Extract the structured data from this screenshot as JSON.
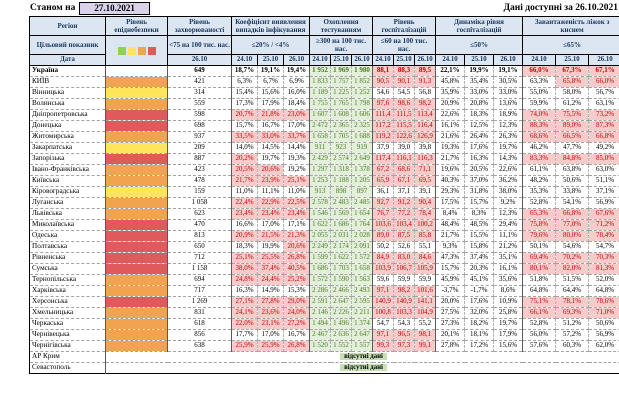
{
  "meta": {
    "as_of_label": "Станом на",
    "as_of_date": "27.10.2021",
    "available_label": "Дані доступні за  26.10.2021"
  },
  "header": {
    "region": "Регіон",
    "target_label": "Цільовий показник",
    "date_label": "Дата",
    "groups": [
      {
        "title": "Рівень епіднебезпеки",
        "target": "",
        "dates": []
      },
      {
        "title": "Рівень захворюваності",
        "target": "<75 на 100 тис. нас.",
        "dates": [
          "26.10"
        ]
      },
      {
        "title": "Коефіцієнт виявлення випадків інфікування",
        "target": "≤20% / <4%",
        "dates": [
          "24.10",
          "25.10",
          "26.10"
        ]
      },
      {
        "title": "Охоплення тестуванням",
        "target": "≥300 на 100 тис. нас.",
        "dates": [
          "24.10",
          "25.10",
          "26.10"
        ]
      },
      {
        "title": "Рівень госпіталізацій",
        "target": "≤60 на 100 тис. нас.",
        "dates": [
          "24.10",
          "25.10",
          "26.10"
        ]
      },
      {
        "title": "Динаміка рівня госпіталізацій",
        "target": "≤50%",
        "dates": [
          "24.10",
          "25.10",
          "26.10"
        ]
      },
      {
        "title": "Завантаженість ліжок з киснем",
        "target": "≤65%",
        "dates": [
          "24.10",
          "25.10",
          "26.10"
        ]
      }
    ]
  },
  "legend_colors": [
    "#92D050",
    "#FFE45C",
    "#F2A34F",
    "#DF5A5A"
  ],
  "thresholds": {
    "detection": 20,
    "hospitalization": 60,
    "dynamics": 50,
    "beds": 65
  },
  "status_colors": {
    "alert_bg": "#F8CBCB",
    "alert_text": "#C00000",
    "good_bg": "#E2EFD9",
    "good_text": "#4E7A27"
  },
  "no_data_text": "відсутні дані",
  "rows": [
    {
      "region": "Україна",
      "level": "none",
      "bold": true,
      "incidence": "649",
      "detection": [
        "18,7%",
        "19,1%",
        "19,4%"
      ],
      "testing": [
        "1 952",
        "1 969",
        "1 980"
      ],
      "hospitalization": [
        "88,1",
        "88,3",
        "89,5"
      ],
      "dynamics": [
        "22,1%",
        "19,9%",
        "19,1%"
      ],
      "beds": [
        "66,0%",
        "67,3%",
        "67,1%"
      ]
    },
    {
      "region": "КИЇВ",
      "level": "orange",
      "incidence": "421",
      "detection": [
        "6,3%",
        "6,7%",
        "6,9%"
      ],
      "testing": [
        "1 833",
        "1 757",
        "1 852"
      ],
      "hospitalization": [
        "90,5",
        "90,1",
        "91,3"
      ],
      "dynamics": [
        "45,8%",
        "35,4%",
        "30,5%"
      ],
      "beds": [
        "63,3%",
        "65,8%",
        "66,0%"
      ]
    },
    {
      "region": "Вінницька",
      "level": "yellow",
      "incidence": "314",
      "detection": [
        "15,4%",
        "15,6%",
        "16,0%"
      ],
      "testing": [
        "1 189",
        "1 225",
        "1 252"
      ],
      "hospitalization": [
        "54,6",
        "54,5",
        "56,8"
      ],
      "dynamics": [
        "35,9%",
        "33,0%",
        "33,0%"
      ],
      "beds": [
        "55,0%",
        "58,0%",
        "56,7%"
      ]
    },
    {
      "region": "Волинська",
      "level": "orange",
      "incidence": "559",
      "detection": [
        "17,3%",
        "17,9%",
        "18,4%"
      ],
      "testing": [
        "1 755",
        "1 765",
        "1 798"
      ],
      "hospitalization": [
        "97,6",
        "98,6",
        "98,2"
      ],
      "dynamics": [
        "20,9%",
        "20,8%",
        "13,6%"
      ],
      "beds": [
        "59,9%",
        "61,2%",
        "63,1%"
      ]
    },
    {
      "region": "Дніпропетровська",
      "level": "red",
      "incidence": "598",
      "detection": [
        "20,7%",
        "21,8%",
        "23,0%"
      ],
      "testing": [
        "1 607",
        "1 608",
        "1 606"
      ],
      "hospitalization": [
        "111,4",
        "111,5",
        "113,4"
      ],
      "dynamics": [
        "22,6%",
        "18,3%",
        "18,9%"
      ],
      "beds": [
        "74,0%",
        "75,5%",
        "73,2%"
      ]
    },
    {
      "region": "Донецька",
      "level": "red",
      "incidence": "698",
      "detection": [
        "15,7%",
        "16,7%",
        "17,0%"
      ],
      "testing": [
        "2 472",
        "2 365",
        "2 325"
      ],
      "hospitalization": [
        "117,2",
        "115,5",
        "116,4"
      ],
      "dynamics": [
        "16,1%",
        "12,5%",
        "12,3%"
      ],
      "beds": [
        "88,3%",
        "89,0%",
        "87,3%"
      ]
    },
    {
      "region": "Житомирська",
      "level": "orange",
      "incidence": "937",
      "detection": [
        "33,5%",
        "33,0%",
        "33,7%"
      ],
      "testing": [
        "1 658",
        "1 705",
        "1 688"
      ],
      "hospitalization": [
        "119,2",
        "122,6",
        "126,9"
      ],
      "dynamics": [
        "21,6%",
        "26,4%",
        "26,3%"
      ],
      "beds": [
        "68,6%",
        "66,5%",
        "66,8%"
      ]
    },
    {
      "region": "Закарпатська",
      "level": "yellow",
      "incidence": "209",
      "detection": [
        "14,0%",
        "14,5%",
        "14,4%"
      ],
      "testing": [
        "911",
        "923",
        "919"
      ],
      "hospitalization": [
        "37,9",
        "39,0",
        "39,8"
      ],
      "dynamics": [
        "19,3%",
        "17,6%",
        "19,7%"
      ],
      "beds": [
        "46,2%",
        "47,7%",
        "49,2%"
      ]
    },
    {
      "region": "Запорізька",
      "level": "red",
      "incidence": "887",
      "detection": [
        "20,2%",
        "19,7%",
        "19,3%"
      ],
      "testing": [
        "2 429",
        "2 574",
        "2 649"
      ],
      "hospitalization": [
        "117,4",
        "116,1",
        "116,3"
      ],
      "dynamics": [
        "21,7%",
        "16,3%",
        "14,3%"
      ],
      "beds": [
        "83,3%",
        "84,8%",
        "85,0%"
      ]
    },
    {
      "region": "Івано-Франківська",
      "level": "orange",
      "incidence": "423",
      "detection": [
        "20,5%",
        "20,6%",
        "19,2%"
      ],
      "testing": [
        "1 297",
        "1 318",
        "1 378"
      ],
      "hospitalization": [
        "67,2",
        "68,6",
        "71,1"
      ],
      "dynamics": [
        "19,6%",
        "20,5%",
        "22,6%"
      ],
      "beds": [
        "61,1%",
        "63,8%",
        "63,0%"
      ]
    },
    {
      "region": "Київська",
      "level": "orange",
      "incidence": "478",
      "detection": [
        "21,7%",
        "23,9%",
        "25,1%"
      ],
      "testing": [
        "1 253",
        "1 188",
        "1 205"
      ],
      "hospitalization": [
        "65,9",
        "67,1",
        "69,5"
      ],
      "dynamics": [
        "40,3%",
        "37,0%",
        "36,2%"
      ],
      "beds": [
        "48,2%",
        "50,6%",
        "51,1%"
      ]
    },
    {
      "region": "Кіровоградська",
      "level": "yellow",
      "incidence": "159",
      "detection": [
        "11,0%",
        "11,1%",
        "11,0%"
      ],
      "testing": [
        "913",
        "898",
        "897"
      ],
      "hospitalization": [
        "36,1",
        "37,1",
        "39,1"
      ],
      "dynamics": [
        "29,3%",
        "31,8%",
        "38,0%"
      ],
      "beds": [
        "35,3%",
        "33,8%",
        "37,1%"
      ]
    },
    {
      "region": "Луганська",
      "level": "orange",
      "incidence": "1 058",
      "detection": [
        "22,4%",
        "22,9%",
        "22,5%"
      ],
      "testing": [
        "2 578",
        "2 483",
        "2 485"
      ],
      "hospitalization": [
        "92,7",
        "91,2",
        "90,4"
      ],
      "dynamics": [
        "17,5%",
        "15,7%",
        "9,2%"
      ],
      "beds": [
        "52,8%",
        "54,1%",
        "56,9%"
      ]
    },
    {
      "region": "Львівська",
      "level": "orange",
      "incidence": "623",
      "detection": [
        "23,4%",
        "23,4%",
        "23,4%"
      ],
      "testing": [
        "1 546",
        "1 569",
        "1 654"
      ],
      "hospitalization": [
        "76,7",
        "77,2",
        "78,4"
      ],
      "dynamics": [
        "8,4%",
        "8,3%",
        "12,3%"
      ],
      "beds": [
        "65,3%",
        "66,8%",
        "67,6%"
      ]
    },
    {
      "region": "Миколаївська",
      "level": "red",
      "incidence": "470",
      "detection": [
        "16,6%",
        "17,0%",
        "17,1%"
      ],
      "testing": [
        "1 622",
        "1 686",
        "1 764"
      ],
      "hospitalization": [
        "103,6",
        "103,4",
        "100,2"
      ],
      "dynamics": [
        "48,4%",
        "48,5%",
        "29,4%"
      ],
      "beds": [
        "75,8%",
        "77,0%",
        "71,2%"
      ]
    },
    {
      "region": "Одеська",
      "level": "red",
      "incidence": "813",
      "detection": [
        "20,9%",
        "21,5%",
        "21,3%"
      ],
      "testing": [
        "2 055",
        "2 031",
        "2 028"
      ],
      "hospitalization": [
        "89,0",
        "87,5",
        "85,8"
      ],
      "dynamics": [
        "21,7%",
        "15,5%",
        "11,1%"
      ],
      "beds": [
        "79,6%",
        "80,0%",
        "78,4%"
      ]
    },
    {
      "region": "Полтавська",
      "level": "red",
      "incidence": "650",
      "detection": [
        "18,3%",
        "19,9%",
        "20,6%"
      ],
      "testing": [
        "2 249",
        "2 174",
        "2 091"
      ],
      "hospitalization": [
        "50,2",
        "52,6",
        "55,1"
      ],
      "dynamics": [
        "9,3%",
        "15,8%",
        "21,2%"
      ],
      "beds": [
        "50,1%",
        "54,6%",
        "54,7%"
      ]
    },
    {
      "region": "Рівненська",
      "level": "red",
      "incidence": "712",
      "detection": [
        "25,1%",
        "25,5%",
        "26,8%"
      ],
      "testing": [
        "1 599",
        "1 622",
        "1 572"
      ],
      "hospitalization": [
        "84,9",
        "83,0",
        "84,6"
      ],
      "dynamics": [
        "47,3%",
        "37,4%",
        "35,1%"
      ],
      "beds": [
        "69,4%",
        "70,2%",
        "70,3%"
      ]
    },
    {
      "region": "Сумська",
      "level": "red",
      "incidence": "1 158",
      "detection": [
        "38,0%",
        "37,4%",
        "40,5%"
      ],
      "testing": [
        "1 686",
        "1 703",
        "1 658"
      ],
      "hospitalization": [
        "103,9",
        "106,7",
        "105,9"
      ],
      "dynamics": [
        "15,7%",
        "20,3%",
        "16,1%"
      ],
      "beds": [
        "80,1%",
        "82,0%",
        "81,3%"
      ]
    },
    {
      "region": "Тернопільська",
      "level": "orange",
      "incidence": "694",
      "detection": [
        "24,8%",
        "24,4%",
        "25,2%"
      ],
      "testing": [
        "1 572",
        "1 590",
        "1 563"
      ],
      "hospitalization": [
        "59,6",
        "59,9",
        "59,9"
      ],
      "dynamics": [
        "45,9%",
        "45,1%",
        "35,6%"
      ],
      "beds": [
        "51,8%",
        "51,5%",
        "52,0%"
      ]
    },
    {
      "region": "Харківська",
      "level": "orange",
      "incidence": "717",
      "detection": [
        "16,3%",
        "14,9%",
        "15,3%"
      ],
      "testing": [
        "2 286",
        "2 466",
        "2 493"
      ],
      "hospitalization": [
        "97,1",
        "98,2",
        "101,6"
      ],
      "dynamics": [
        "-3,7%",
        "-1,7%",
        "8,6%"
      ],
      "beds": [
        "64,8%",
        "64,4%",
        "64,8%"
      ]
    },
    {
      "region": "Херсонська",
      "level": "red",
      "incidence": "1 269",
      "detection": [
        "27,1%",
        "27,8%",
        "29,0%"
      ],
      "testing": [
        "2 591",
        "2 647",
        "2 595"
      ],
      "hospitalization": [
        "140,9",
        "140,9",
        "141,1"
      ],
      "dynamics": [
        "20,0%",
        "17,6%",
        "10,9%"
      ],
      "beds": [
        "75,1%",
        "78,1%",
        "78,6%"
      ]
    },
    {
      "region": "Хмельницька",
      "level": "orange",
      "incidence": "831",
      "detection": [
        "24,1%",
        "23,6%",
        "24,0%"
      ],
      "testing": [
        "2 146",
        "2 226",
        "2 211"
      ],
      "hospitalization": [
        "100,8",
        "103,3",
        "104,9"
      ],
      "dynamics": [
        "27,5%",
        "32,0%",
        "25,8%"
      ],
      "beds": [
        "66,1%",
        "69,3%",
        "71,0%"
      ]
    },
    {
      "region": "Черкаська",
      "level": "orange",
      "incidence": "618",
      "detection": [
        "22,0%",
        "23,1%",
        "27,2%"
      ],
      "testing": [
        "1 494",
        "1 496",
        "1 374"
      ],
      "hospitalization": [
        "54,7",
        "54,3",
        "55,2"
      ],
      "dynamics": [
        "27,3%",
        "18,2%",
        "19,7%"
      ],
      "beds": [
        "52,8%",
        "51,2%",
        "50,6%"
      ]
    },
    {
      "region": "Чернівецька",
      "level": "orange",
      "incidence": "856",
      "detection": [
        "17,7%",
        "17,0%",
        "16,7%"
      ],
      "testing": [
        "2 467",
        "2 636",
        "2 647"
      ],
      "hospitalization": [
        "97,1",
        "96,5",
        "98,1"
      ],
      "dynamics": [
        "20,1%",
        "18,1%",
        "17,9%"
      ],
      "beds": [
        "56,0%",
        "57,2%",
        "56,9%"
      ]
    },
    {
      "region": "Чернігівська",
      "level": "orange",
      "incidence": "638",
      "detection": [
        "25,9%",
        "25,9%",
        "26,8%"
      ],
      "testing": [
        "1 520",
        "1 552",
        "1 557"
      ],
      "hospitalization": [
        "99,3",
        "97,3",
        "99,1"
      ],
      "dynamics": [
        "27,8%",
        "17,2%",
        "15,6%"
      ],
      "beds": [
        "57,6%",
        "60,3%",
        "62,0%"
      ]
    },
    {
      "region": "АР Крим",
      "level": "none",
      "no_data": true
    },
    {
      "region": "Севастополь",
      "level": "none",
      "no_data": true
    }
  ]
}
